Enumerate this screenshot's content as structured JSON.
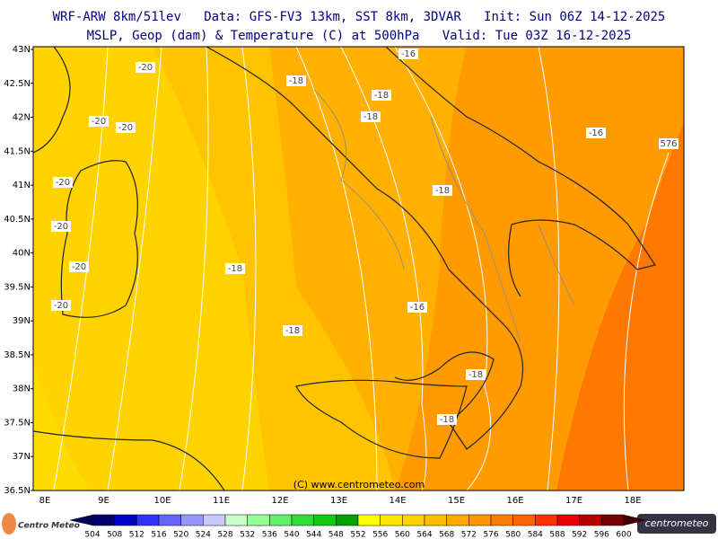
{
  "header": {
    "title": "WRF-ARW 8km/51lev   Data: GFS-FV3 13km, SST 8km, 3DVAR   Init: Sun 06Z 14-12-2025",
    "subtitle": "MSLP, Geop (dam) & Temperature (C) at 500hPa   Valid: Tue 03Z 16-12-2025"
  },
  "map": {
    "lat_labels": [
      "43N",
      "42.5N",
      "42N",
      "41.5N",
      "41N",
      "40.5N",
      "40N",
      "39.5N",
      "39N",
      "38.5N",
      "38N",
      "37.5N",
      "37N",
      "36.5N"
    ],
    "lon_labels": [
      "8E",
      "9E",
      "10E",
      "11E",
      "12E",
      "13E",
      "14E",
      "15E",
      "16E",
      "17E",
      "18E"
    ],
    "isotherm_labels": [
      "-20",
      "-20",
      "-20",
      "-20",
      "-20",
      "-20",
      "-20",
      "-18",
      "-18",
      "-18",
      "-18",
      "-18",
      "-18",
      "-18",
      "-18",
      "-16",
      "-16",
      "-16",
      "576"
    ],
    "copyright": "(C) www.centrometeo.com"
  },
  "colorbar": {
    "ticks": [
      504,
      508,
      512,
      516,
      520,
      524,
      528,
      532,
      536,
      540,
      544,
      548,
      552,
      556,
      560,
      564,
      568,
      572,
      576,
      580,
      584,
      588,
      592,
      596,
      600
    ],
    "colors": [
      "#00006e",
      "#0000c8",
      "#3232ff",
      "#6464ff",
      "#9696ff",
      "#c8c8ff",
      "#c8ffc8",
      "#96ff96",
      "#64f064",
      "#32dc32",
      "#14c814",
      "#00a000",
      "#ffff00",
      "#ffe600",
      "#ffd200",
      "#ffbe00",
      "#ffaa00",
      "#ff9600",
      "#ff7d00",
      "#ff6400",
      "#ff3200",
      "#e60000",
      "#b40000",
      "#780000"
    ]
  },
  "logos": {
    "left": "Centro Meteo",
    "right": "centrometeo"
  }
}
